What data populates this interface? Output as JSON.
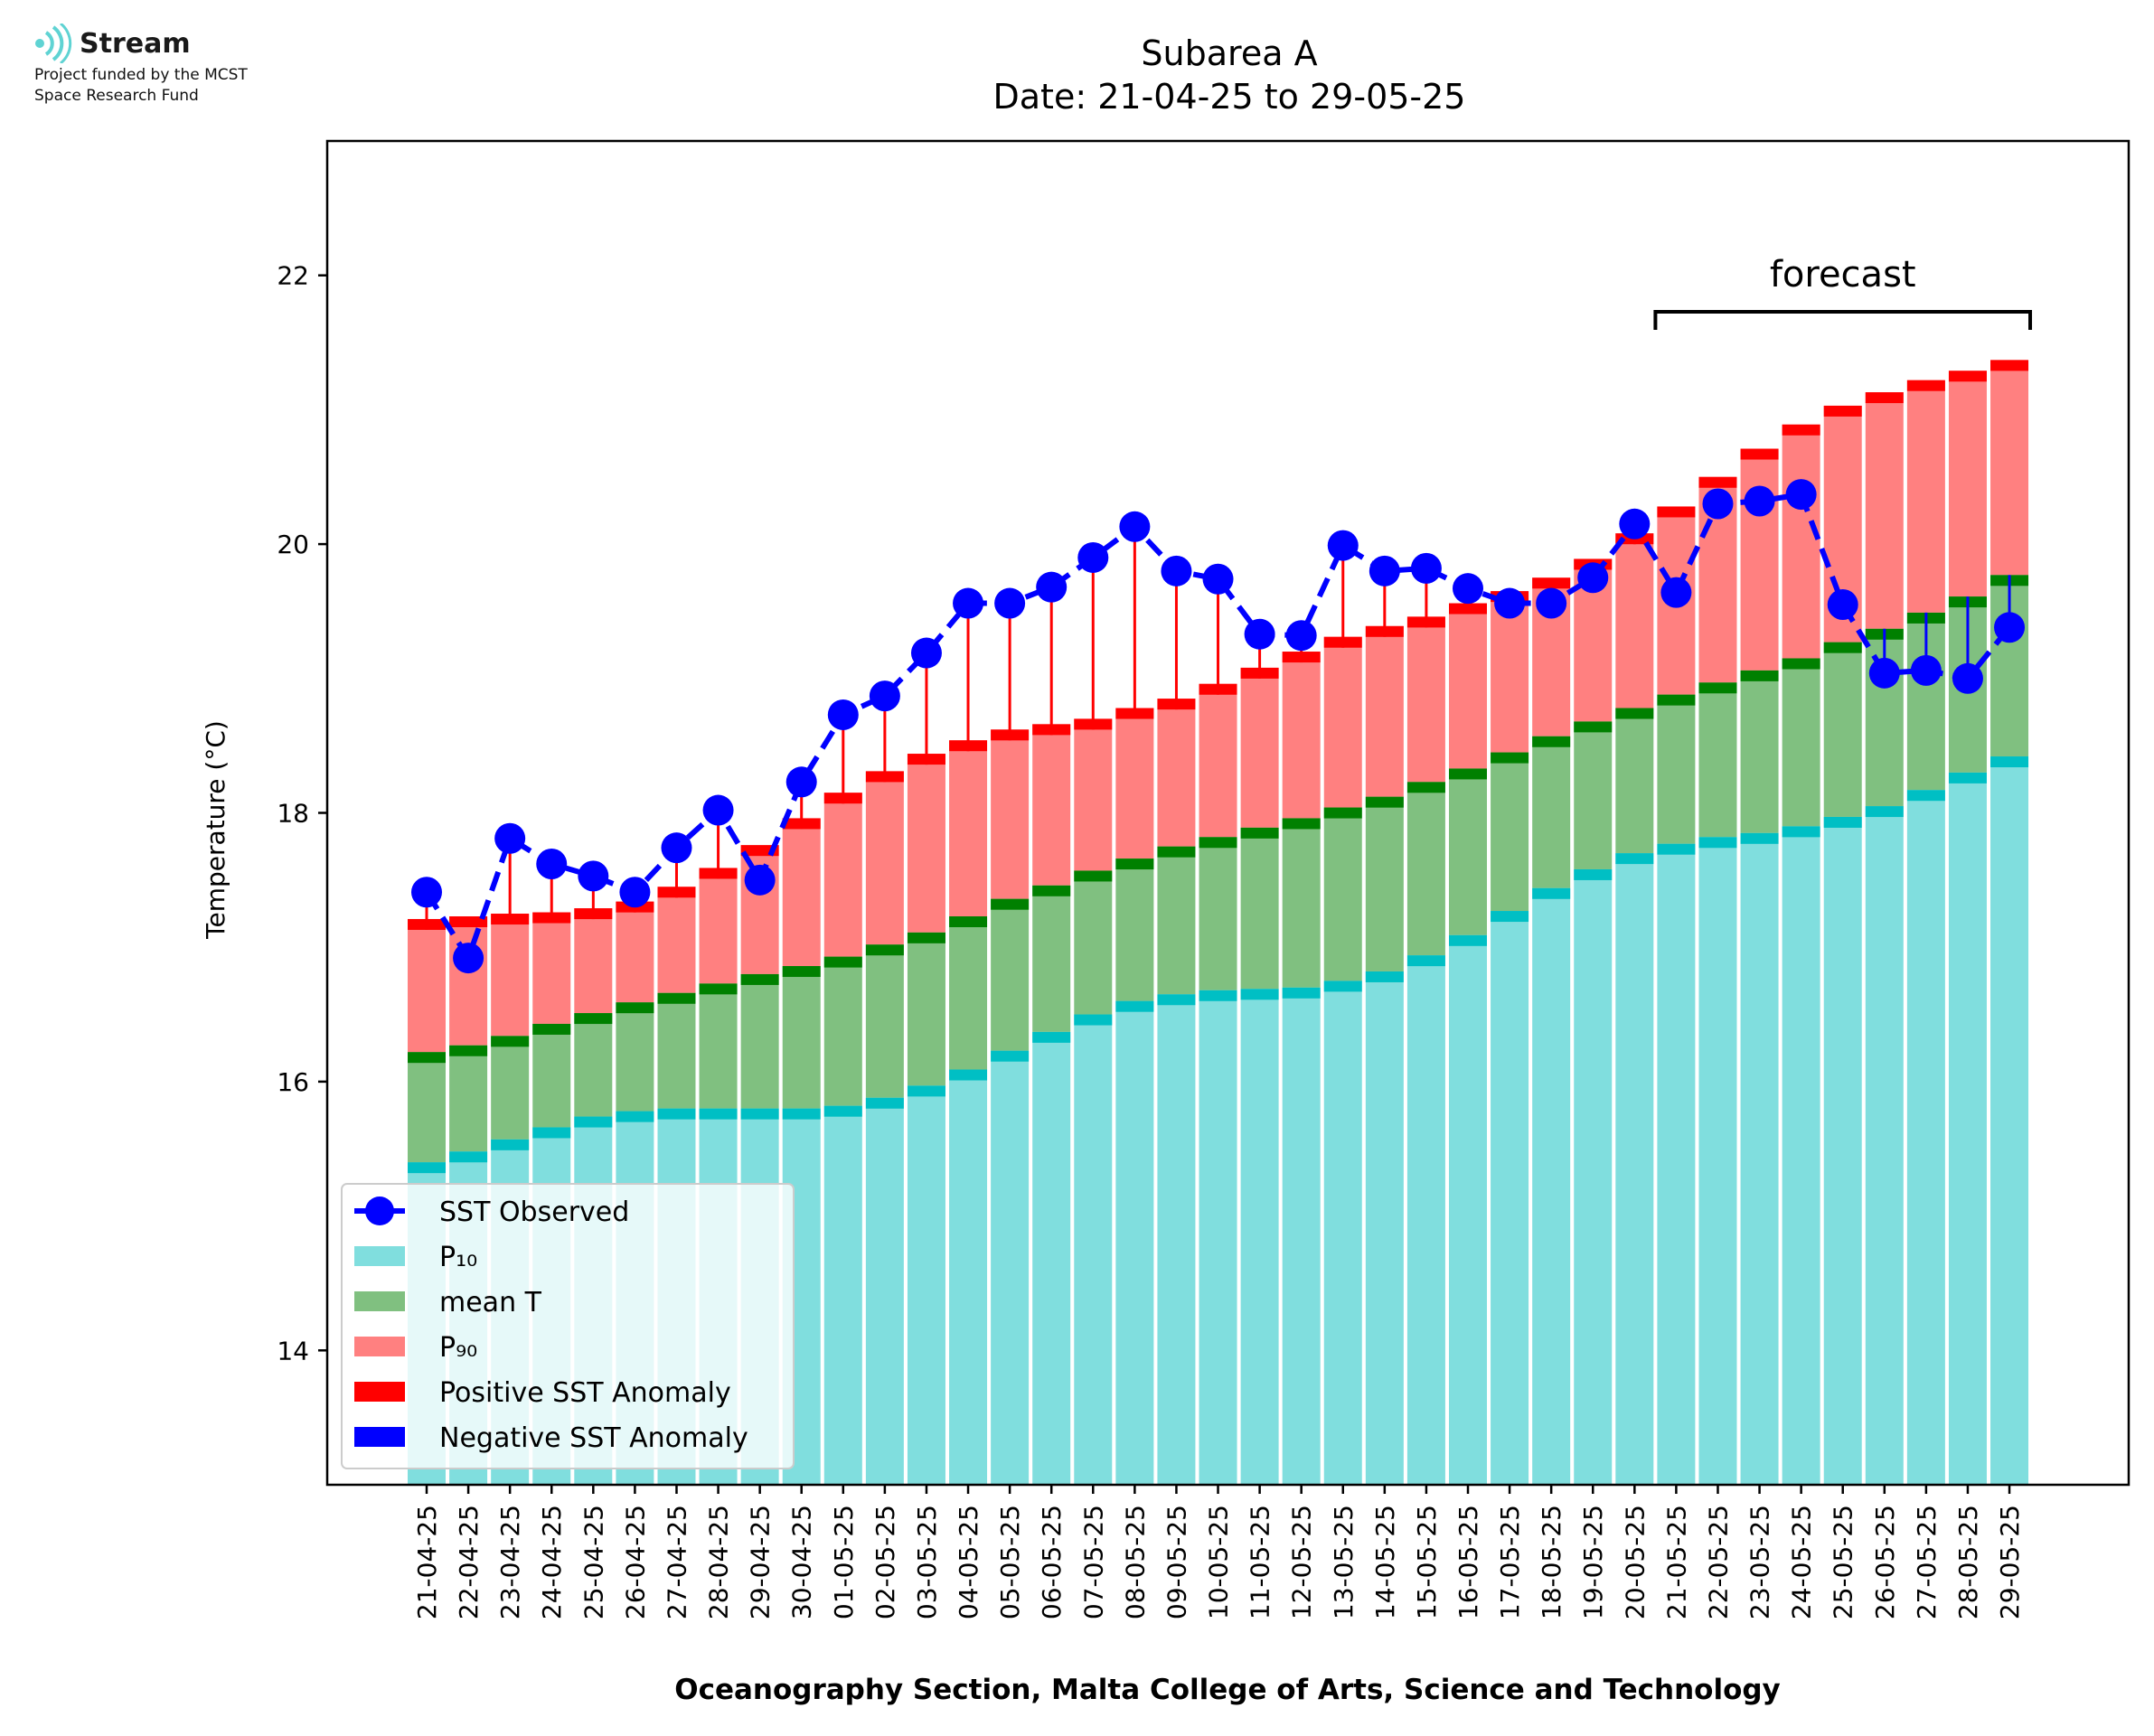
{
  "logo": {
    "name": "Stream",
    "funded_line1": "Project funded by the MCST",
    "funded_line2": "Space Research Fund"
  },
  "chart_data": {
    "type": "bar",
    "title": "Subarea A",
    "subtitle": "Date: 21-04-25 to 29-05-25",
    "xlabel": "Oceanography Section, Malta College of Arts, Science and Technology",
    "ylabel": "Temperature (°C)",
    "ylim": [
      13,
      23
    ],
    "yticks": [
      14,
      16,
      18,
      20,
      22
    ],
    "grid": false,
    "legend_position": "lower-left",
    "categories": [
      "21-04-25",
      "22-04-25",
      "23-04-25",
      "24-04-25",
      "25-04-25",
      "26-04-25",
      "27-04-25",
      "28-04-25",
      "29-04-25",
      "30-04-25",
      "01-05-25",
      "02-05-25",
      "03-05-25",
      "04-05-25",
      "05-05-25",
      "06-05-25",
      "07-05-25",
      "08-05-25",
      "09-05-25",
      "10-05-25",
      "11-05-25",
      "12-05-25",
      "13-05-25",
      "14-05-25",
      "15-05-25",
      "16-05-25",
      "17-05-25",
      "18-05-25",
      "19-05-25",
      "20-05-25",
      "21-05-25",
      "22-05-25",
      "23-05-25",
      "24-05-25",
      "25-05-25",
      "26-05-25",
      "27-05-25",
      "28-05-25",
      "29-05-25"
    ],
    "series": [
      {
        "name": "SST Observed",
        "kind": "line",
        "color": "#0000ff",
        "values": [
          17.41,
          16.92,
          17.81,
          17.62,
          17.53,
          17.41,
          17.74,
          18.02,
          17.5,
          18.23,
          18.73,
          18.87,
          19.19,
          19.56,
          19.56,
          19.68,
          19.9,
          20.13,
          19.8,
          19.74,
          19.33,
          19.32,
          19.99,
          19.8,
          19.82,
          19.67,
          19.56,
          19.56,
          19.75,
          20.15,
          19.64,
          20.3,
          20.32,
          20.37,
          19.55,
          19.04,
          19.06,
          19.0,
          19.38
        ]
      },
      {
        "name": "P10",
        "kind": "bar",
        "color": "#80dede",
        "band_color": "#00bfc4",
        "values": [
          15.4,
          15.48,
          15.57,
          15.66,
          15.74,
          15.78,
          15.8,
          15.8,
          15.8,
          15.8,
          15.82,
          15.88,
          15.97,
          16.09,
          16.23,
          16.37,
          16.5,
          16.6,
          16.65,
          16.68,
          16.69,
          16.7,
          16.75,
          16.82,
          16.94,
          17.09,
          17.27,
          17.44,
          17.58,
          17.7,
          17.77,
          17.82,
          17.85,
          17.9,
          17.97,
          18.05,
          18.17,
          18.3,
          18.42
        ]
      },
      {
        "name": "mean T",
        "kind": "bar",
        "color": "#80c080",
        "band_color": "#008000",
        "values": [
          16.22,
          16.27,
          16.34,
          16.43,
          16.51,
          16.59,
          16.66,
          16.73,
          16.8,
          16.86,
          16.93,
          17.02,
          17.11,
          17.23,
          17.36,
          17.46,
          17.57,
          17.66,
          17.75,
          17.82,
          17.89,
          17.96,
          18.04,
          18.12,
          18.23,
          18.33,
          18.45,
          18.57,
          18.68,
          18.78,
          18.88,
          18.97,
          19.06,
          19.15,
          19.27,
          19.37,
          19.49,
          19.61,
          19.77
        ]
      },
      {
        "name": "P90",
        "kind": "bar",
        "color": "#ff8080",
        "band_color": "#ff0000",
        "values": [
          17.21,
          17.23,
          17.25,
          17.26,
          17.29,
          17.34,
          17.45,
          17.59,
          17.76,
          17.96,
          18.15,
          18.31,
          18.44,
          18.54,
          18.62,
          18.66,
          18.7,
          18.78,
          18.85,
          18.96,
          19.08,
          19.2,
          19.31,
          19.39,
          19.46,
          19.56,
          19.65,
          19.75,
          19.89,
          20.08,
          20.28,
          20.5,
          20.71,
          20.89,
          21.03,
          21.13,
          21.22,
          21.29,
          21.37
        ]
      }
    ],
    "legend": [
      {
        "label": "SST Observed",
        "kind": "line-marker",
        "color": "#0000ff"
      },
      {
        "label": "P₁₀",
        "kind": "patch",
        "color": "#80dede"
      },
      {
        "label": "mean T",
        "kind": "patch",
        "color": "#80c080"
      },
      {
        "label": "P₉₀",
        "kind": "patch",
        "color": "#ff8080"
      },
      {
        "label": "Positive SST Anomaly",
        "kind": "patch",
        "color": "#ff0000"
      },
      {
        "label": "Negative SST Anomaly",
        "kind": "patch",
        "color": "#0000ff"
      }
    ],
    "annotation": {
      "text": "forecast",
      "from": "21-05-25",
      "to": "29-05-25"
    },
    "colors": {
      "positive_anomaly": "#ff0000",
      "negative_anomaly": "#0000ff"
    }
  }
}
